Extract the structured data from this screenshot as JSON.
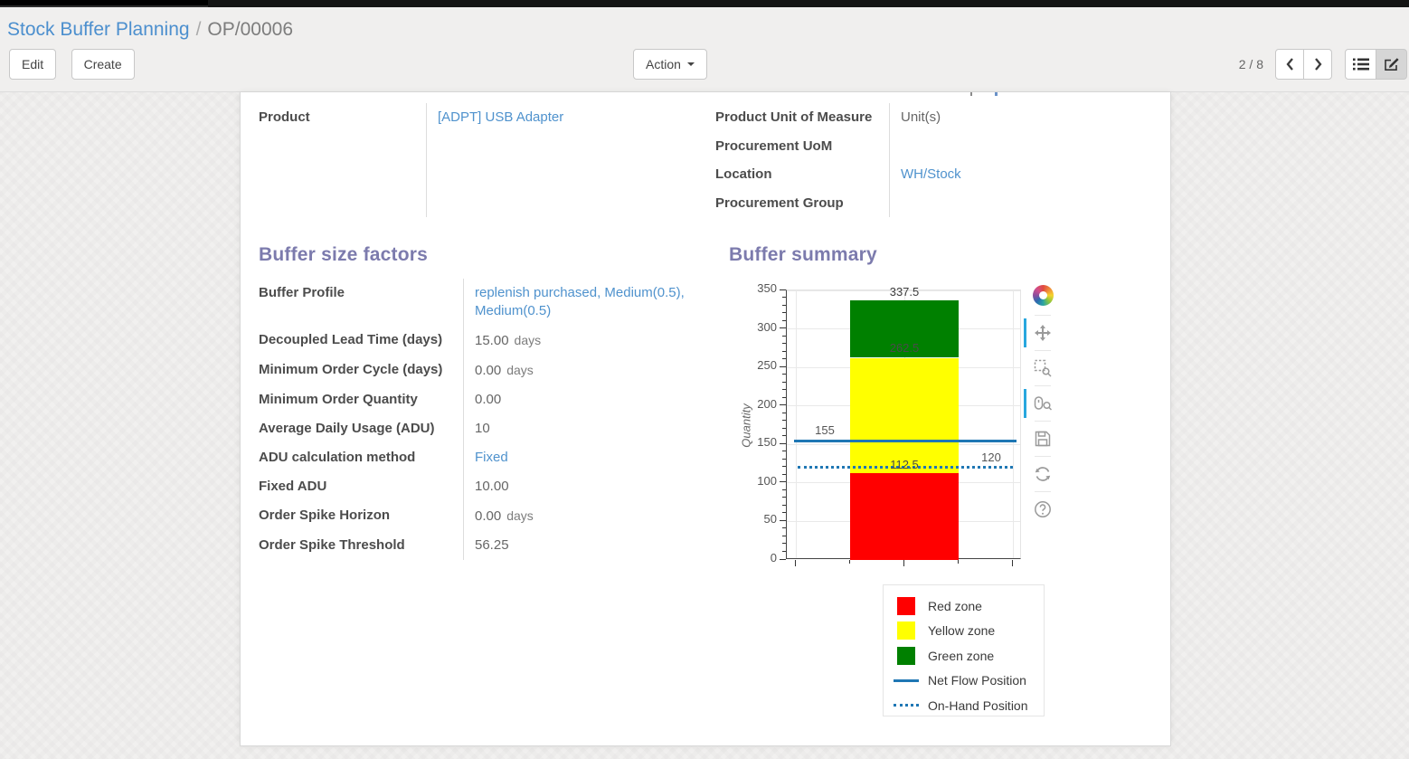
{
  "breadcrumb": {
    "parent": "Stock Buffer Planning",
    "separator": "/",
    "current": "OP/00006"
  },
  "control_panel": {
    "edit_label": "Edit",
    "create_label": "Create",
    "action_label": "Action",
    "pager": {
      "text": "2 / 8"
    },
    "view_switcher": {
      "buttons": [
        {
          "icon": "list",
          "active": false
        },
        {
          "icon": "form",
          "active": true
        }
      ]
    }
  },
  "form": {
    "left_fields": [
      {
        "label": "Product",
        "value": "[ADPT] USB Adapter",
        "link": true
      }
    ],
    "right_fields": [
      {
        "label": "Product Unit of Measure",
        "value": "Unit(s)"
      },
      {
        "label": "Procurement UoM",
        "value": ""
      },
      {
        "label": "Location",
        "value": "WH/Stock",
        "link": true
      },
      {
        "label": "Procurement Group",
        "value": ""
      }
    ],
    "buffer_factors": {
      "title": "Buffer size factors",
      "fields": [
        {
          "label": "Buffer Profile",
          "value": "replenish purchased, Medium(0.5), Medium(0.5)",
          "link": true
        },
        {
          "label": "Decoupled Lead Time (days)",
          "value": "15.00",
          "unit": "days"
        },
        {
          "label": "Minimum Order Cycle (days)",
          "value": "0.00",
          "unit": "days"
        },
        {
          "label": "Minimum Order Quantity",
          "value": "0.00"
        },
        {
          "label": "Average Daily Usage (ADU)",
          "value": "10"
        },
        {
          "label": "ADU calculation method",
          "value": "Fixed",
          "link": true
        },
        {
          "label": "Fixed ADU",
          "value": "10.00"
        },
        {
          "label": "Order Spike Horizon",
          "value": "0.00",
          "unit": "days"
        },
        {
          "label": "Order Spike Threshold",
          "value": "56.25"
        }
      ]
    },
    "buffer_summary_title": "Buffer summary"
  },
  "chart_data": {
    "type": "bar",
    "title": "Buffer summary",
    "xlabel": "",
    "ylabel": "Quantity",
    "ylim": [
      0,
      350
    ],
    "yticks": [
      0,
      50,
      100,
      150,
      200,
      250,
      300,
      350
    ],
    "grid": true,
    "zones": [
      {
        "name": "Red zone",
        "from": 0,
        "to": 112.5,
        "color": "#ff0000"
      },
      {
        "name": "Yellow zone",
        "from": 112.5,
        "to": 262.5,
        "color": "#ffff00"
      },
      {
        "name": "Green zone",
        "from": 262.5,
        "to": 337.5,
        "color": "#008000"
      }
    ],
    "lines": [
      {
        "name": "Net Flow Position",
        "value": 155,
        "style": "solid",
        "color": "#1f77b4"
      },
      {
        "name": "On-Hand Position",
        "value": 120,
        "style": "dotted",
        "color": "#1f77b4"
      }
    ],
    "annotations": [
      "337.5",
      "262.5",
      "112.5",
      "155",
      "120"
    ],
    "legend_position": "below-right"
  },
  "chart_toolbar": {
    "logo": "bokeh-logo",
    "tools": [
      {
        "name": "pan",
        "active": true
      },
      {
        "name": "box-zoom",
        "active": false
      },
      {
        "name": "wheel-zoom",
        "active": true
      },
      {
        "name": "save",
        "active": false
      },
      {
        "name": "reset",
        "active": false
      },
      {
        "name": "help",
        "active": false
      }
    ]
  }
}
